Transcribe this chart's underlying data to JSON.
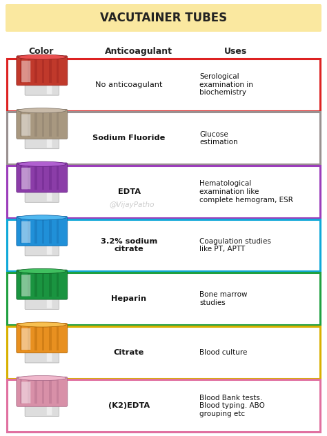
{
  "title": "VACUTAINER TUBES",
  "title_bg": "#FAE8A0",
  "col_headers": [
    "Color",
    "Anticoagulant",
    "Uses"
  ],
  "rows": [
    {
      "cap_color": "#C0392B",
      "cap_dark": "#8B1A1A",
      "cap_light": "#E85050",
      "body_color": "#DDDDDD",
      "border_color": "#DD2222",
      "anticoagulant": "No anticoagulant",
      "anticoagulant_bold": false,
      "uses": "Serological\nexamination in\nbiochemistry"
    },
    {
      "cap_color": "#A89880",
      "cap_dark": "#7A6E60",
      "cap_light": "#C8BAA8",
      "body_color": "#DDDDDD",
      "border_color": "#999090",
      "anticoagulant": "Sodium Fluoride",
      "anticoagulant_bold": true,
      "uses": "Glucose\nestimation"
    },
    {
      "cap_color": "#8B3DA8",
      "cap_dark": "#5C1A7A",
      "cap_light": "#B060D0",
      "body_color": "#DDDDDD",
      "border_color": "#9B3DBB",
      "anticoagulant": "EDTA",
      "anticoagulant_bold": true,
      "uses": "Hematological\nexamination like\ncomplete hemogram, ESR"
    },
    {
      "cap_color": "#2090D8",
      "cap_dark": "#1060A0",
      "cap_light": "#50B8F0",
      "body_color": "#DDDDDD",
      "border_color": "#10A8D8",
      "anticoagulant": "3.2% sodium\ncitrate",
      "anticoagulant_bold": true,
      "uses": "Coagulation studies\nlike PT, APTT"
    },
    {
      "cap_color": "#1A9440",
      "cap_dark": "#0A5A20",
      "cap_light": "#40C060",
      "body_color": "#DDDDDD",
      "border_color": "#20A040",
      "anticoagulant": "Heparin",
      "anticoagulant_bold": true,
      "uses": "Bone marrow\nstudies"
    },
    {
      "cap_color": "#E89020",
      "cap_dark": "#A05A00",
      "cap_light": "#F8C050",
      "body_color": "#DDDDDD",
      "border_color": "#D8B000",
      "anticoagulant": "Citrate",
      "anticoagulant_bold": true,
      "uses": "Blood culture"
    },
    {
      "cap_color": "#D890A8",
      "cap_dark": "#A06080",
      "cap_light": "#F0B8CC",
      "body_color": "#DDDDDD",
      "border_color": "#E070A0",
      "anticoagulant": "(K2)EDTA",
      "anticoagulant_bold": true,
      "uses": "Blood Bank tests.\nBlood typing. ABO\ngrouping etc"
    }
  ],
  "watermark": "@VijayPatho",
  "bg_color": "#FFFFFF"
}
